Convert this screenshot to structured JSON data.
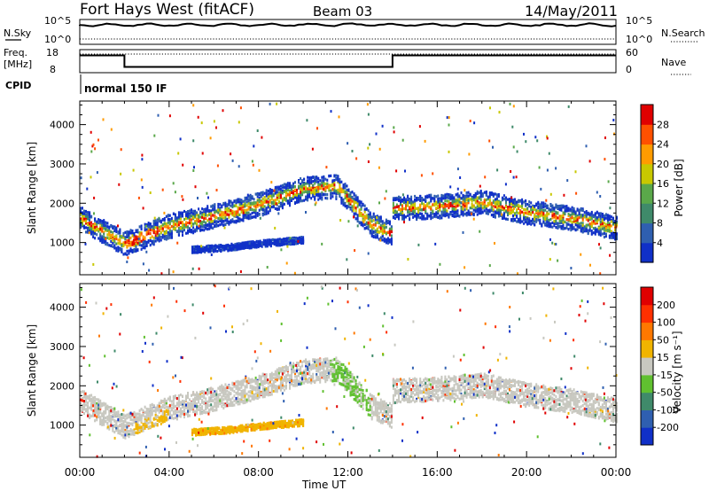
{
  "header": {
    "station": "Fort Hays West (fitACF)",
    "beam": "Beam 03",
    "date": "14/May/2011"
  },
  "top_panels": {
    "nsky_label": "N.Sky",
    "nsearch_label": "N.Search",
    "noise_ticks_left": [
      "10^5",
      "10^0"
    ],
    "noise_ticks_right": [
      "10^5",
      "10^0"
    ],
    "freq_label_1": "Freq.",
    "freq_label_2": "[MHz]",
    "freq_ticks": [
      "18",
      "8"
    ],
    "nave_label": "Nave",
    "nave_ticks": [
      "60",
      "0"
    ],
    "cpid_label": "CPID",
    "cpid_value": "normal 150 IF"
  },
  "chart_data": [
    {
      "type": "line",
      "title": "",
      "xlabel": "",
      "ylabel": "Freq. [MHz]",
      "ylim": [
        8,
        18
      ],
      "x_hours": [
        0,
        2.0,
        2.0,
        14.0,
        14.0,
        24
      ],
      "series": [
        {
          "name": "Freq.",
          "values": [
            15.5,
            15.5,
            10.5,
            10.5,
            15.5,
            15.5
          ]
        }
      ]
    },
    {
      "type": "heatmap",
      "title": "",
      "xlabel": "Time UT",
      "ylabel": "Slant Range [km]",
      "xlim": [
        0,
        24
      ],
      "ylim": [
        180,
        4600
      ],
      "x_ticks": [
        "00:00",
        "04:00",
        "08:00",
        "12:00",
        "16:00",
        "20:00",
        "00:00"
      ],
      "y_ticks": [
        1000,
        2000,
        3000,
        4000
      ],
      "colorbar": {
        "label": "Power [dB]",
        "ticks": [
          4,
          8,
          12,
          16,
          20,
          24,
          28
        ],
        "colors": [
          "#1030c8",
          "#2f5fb0",
          "#3f8a6a",
          "#5aa84a",
          "#c8c800",
          "#ff9b00",
          "#ff5000",
          "#e00000"
        ]
      },
      "scatter_bands": [
        {
          "name": "main",
          "x": [
            0,
            2,
            4,
            6,
            8,
            10,
            11.5,
            13,
            14
          ],
          "y": [
            1650,
            1000,
            1450,
            1700,
            2000,
            2400,
            2450,
            1500,
            1250
          ]
        },
        {
          "name": "late",
          "x": [
            14,
            16,
            18,
            20,
            22,
            24
          ],
          "y": [
            1900,
            1950,
            2050,
            1800,
            1650,
            1400
          ]
        },
        {
          "name": "low",
          "x": [
            5,
            6.5,
            8,
            10
          ],
          "y": [
            850,
            900,
            1000,
            1100
          ]
        }
      ]
    },
    {
      "type": "heatmap",
      "title": "",
      "xlabel": "Time UT",
      "ylabel": "Slant Range [km]",
      "xlim": [
        0,
        24
      ],
      "ylim": [
        180,
        4600
      ],
      "x_ticks": [
        "00:00",
        "04:00",
        "08:00",
        "12:00",
        "16:00",
        "20:00",
        "00:00"
      ],
      "y_ticks": [
        1000,
        2000,
        3000,
        4000
      ],
      "colorbar": {
        "label": "Velocity [m s⁻¹]",
        "ticks": [
          "200",
          "100",
          "50",
          "15",
          "-15",
          "-50",
          "-100",
          "-200"
        ],
        "colors": [
          "#1030c8",
          "#2f5fb0",
          "#3f8a6a",
          "#60c030",
          "#c8c8c0",
          "#f0b400",
          "#ff7800",
          "#ff3000",
          "#e00000"
        ]
      },
      "scatter_bands": [
        {
          "name": "main",
          "x": [
            0,
            2,
            4,
            6,
            8,
            10,
            11.5,
            13,
            14
          ],
          "y": [
            1650,
            1000,
            1450,
            1700,
            2000,
            2400,
            2450,
            1500,
            1250
          ]
        },
        {
          "name": "late",
          "x": [
            14,
            16,
            18,
            20,
            22,
            24
          ],
          "y": [
            1900,
            1950,
            2050,
            1800,
            1650,
            1400
          ]
        },
        {
          "name": "low",
          "x": [
            5,
            6.5,
            8,
            10
          ],
          "y": [
            850,
            900,
            1000,
            1100
          ]
        }
      ]
    }
  ]
}
